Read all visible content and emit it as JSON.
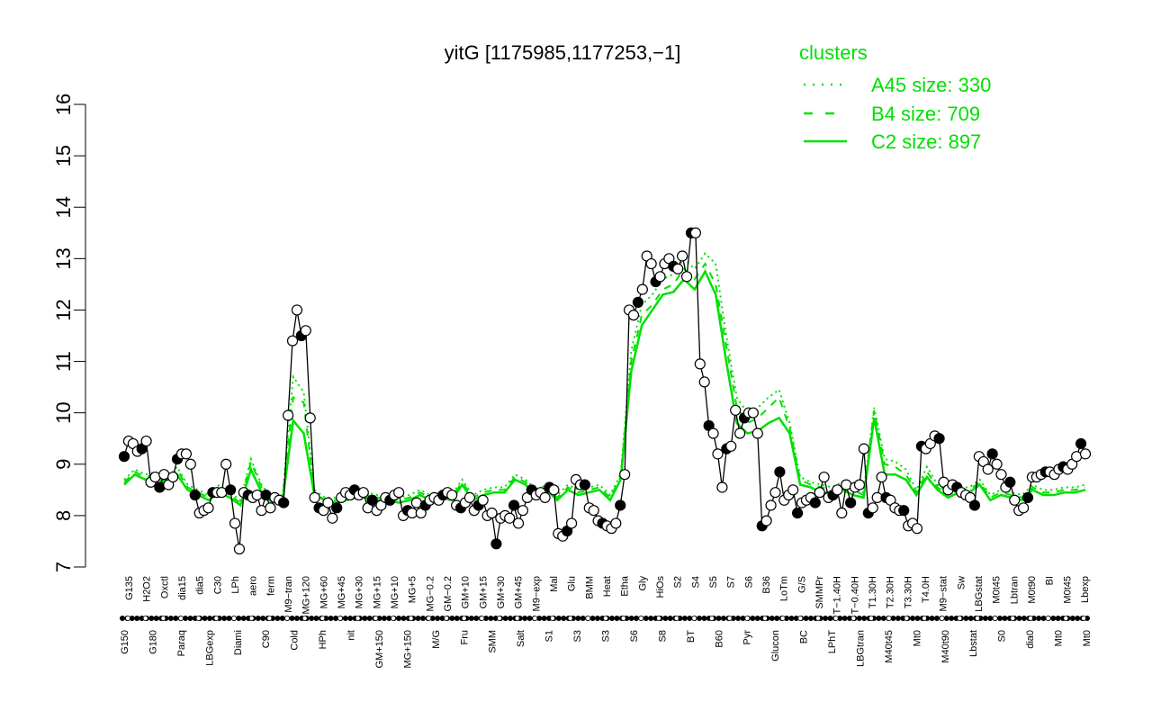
{
  "chart_data": {
    "type": "line",
    "title": "yitG [1175985,1177253,−1]",
    "xlabel": "",
    "ylabel": "",
    "ylim": [
      7,
      16
    ],
    "yticks": [
      7,
      8,
      9,
      10,
      11,
      12,
      13,
      14,
      15,
      16
    ],
    "grid": false,
    "legend": {
      "title": "clusters",
      "placement": "top-right",
      "color": "#00e000",
      "entries": [
        {
          "label": "A45 size: 330",
          "style": "dotted"
        },
        {
          "label": "B4 size: 709",
          "style": "dashed"
        },
        {
          "label": "C2 size: 897",
          "style": "solid"
        }
      ]
    },
    "tick_labels_top": [
      "G135",
      "H2O2",
      "Oxctl",
      "dia15",
      "dia5",
      "C30",
      "LPh",
      "aero",
      "ferm",
      "M9−tran",
      "MG+120",
      "MG+60",
      "MG+45",
      "MG+30",
      "MG+15",
      "MG+10",
      "MG+5",
      "MG−0.2",
      "GM−0.2",
      "GM+10",
      "GM+15",
      "GM+30",
      "GM+45",
      "M9−exp",
      "Mal",
      "Glu",
      "BMM",
      "Heat",
      "Etha",
      "Gly",
      "HiOs",
      "S2",
      "S4",
      "S5",
      "S7",
      "S6",
      "B36",
      "LoTm",
      "G/S",
      "SMMPr",
      "T−1.40H",
      "T−0.40H",
      "T1.30H",
      "T2.30H",
      "T3.30H",
      "T4.0H",
      "M9−stat",
      "Sw",
      "LBGstat",
      "M0t45",
      "Lbtran",
      "M0t90",
      "BI",
      "M0t45",
      "Lbexp"
    ],
    "tick_labels_bottom": [
      "G150",
      "G180",
      "Paraq",
      "LBGexp",
      "Diami",
      "C90",
      "Cold",
      "HPh",
      "nit",
      "GM+150",
      "MG+150",
      "M/G",
      "Fru",
      "SMM",
      "Salt",
      "S1",
      "S3",
      "S3",
      "S6",
      "S8",
      "BT",
      "B60",
      "Pyr",
      "Glucon",
      "BC",
      "LPhT",
      "LBGtran",
      "M40t45",
      "Mt0",
      "M40t90",
      "Lbstat",
      "S0",
      "dia0",
      "Mt0",
      "Mt0"
    ],
    "series_values": [
      9.15,
      9.45,
      9.4,
      9.25,
      9.3,
      9.45,
      8.65,
      8.75,
      8.55,
      8.8,
      8.6,
      8.75,
      9.1,
      9.2,
      9.2,
      9.0,
      8.4,
      8.05,
      8.1,
      8.15,
      8.45,
      8.45,
      8.45,
      9.0,
      8.5,
      7.85,
      7.35,
      8.45,
      8.4,
      8.35,
      8.4,
      8.1,
      8.4,
      8.15,
      8.35,
      8.3,
      8.25,
      9.95,
      11.4,
      12.0,
      11.5,
      11.6,
      9.9,
      8.35,
      8.15,
      8.1,
      8.25,
      7.95,
      8.15,
      8.35,
      8.45,
      8.4,
      8.5,
      8.4,
      8.45,
      8.15,
      8.3,
      8.1,
      8.2,
      8.35,
      8.3,
      8.4,
      8.45,
      8.0,
      8.1,
      8.05,
      8.25,
      8.05,
      8.2,
      8.3,
      8.35,
      8.3,
      8.4,
      8.45,
      8.4,
      8.2,
      8.15,
      8.25,
      8.35,
      8.1,
      8.2,
      8.3,
      8.0,
      8.05,
      7.45,
      7.95,
      8.0,
      7.95,
      8.2,
      7.85,
      8.1,
      8.35,
      8.5,
      8.4,
      8.45,
      8.35,
      8.55,
      8.5,
      7.65,
      7.6,
      7.7,
      7.85,
      8.7,
      8.6,
      8.6,
      8.15,
      8.1,
      7.9,
      7.85,
      7.8,
      7.75,
      7.85,
      8.2,
      8.8,
      12.0,
      11.9,
      12.15,
      12.4,
      13.05,
      12.9,
      12.55,
      12.65,
      12.9,
      13.0,
      12.85,
      12.8,
      13.05,
      12.65,
      13.5,
      13.5,
      10.95,
      10.6,
      9.75,
      9.6,
      9.2,
      8.55,
      9.3,
      9.35,
      10.05,
      9.6,
      9.9,
      10.0,
      10.0,
      9.6,
      7.8,
      7.9,
      8.2,
      8.45,
      8.85,
      8.3,
      8.4,
      8.5,
      8.05,
      8.25,
      8.3,
      8.35,
      8.25,
      8.45,
      8.75,
      8.35,
      8.4,
      8.5,
      8.05,
      8.6,
      8.25,
      8.55,
      8.6,
      9.3,
      8.05,
      8.15,
      8.35,
      8.75,
      8.35,
      8.3,
      8.15,
      8.1,
      8.1,
      7.8,
      7.85,
      7.75,
      9.35,
      9.3,
      9.4,
      9.55,
      9.5,
      8.65,
      8.5,
      8.6,
      8.55,
      8.45,
      8.4,
      8.35,
      8.2,
      9.15,
      9.05,
      8.9,
      9.2,
      9.0,
      8.8,
      8.55,
      8.65,
      8.3,
      8.1,
      8.15,
      8.35,
      8.75,
      8.75,
      8.8,
      8.85,
      8.85,
      8.8,
      8.9,
      8.95,
      8.9,
      9.0,
      9.15,
      9.4,
      9.2
    ],
    "cluster_series": [
      {
        "style": "solid",
        "values": [
          8.6,
          8.8,
          8.7,
          8.75,
          8.6,
          8.8,
          8.5,
          8.4,
          8.3,
          8.45,
          8.35,
          8.2,
          8.9,
          8.45,
          8.25,
          8.3,
          9.85,
          9.6,
          8.4,
          8.3,
          8.25,
          8.3,
          8.35,
          8.35,
          8.3,
          8.3,
          8.25,
          8.3,
          8.4,
          8.3,
          8.35,
          8.3,
          8.6,
          8.3,
          8.4,
          8.45,
          8.45,
          8.7,
          8.6,
          8.4,
          8.5,
          8.3,
          8.5,
          8.4,
          8.45,
          8.5,
          8.3,
          8.7,
          10.8,
          11.7,
          12.0,
          12.3,
          12.35,
          12.6,
          12.4,
          12.75,
          12.3,
          11.0,
          9.8,
          9.6,
          9.65,
          9.8,
          9.9,
          9.6,
          8.6,
          8.55,
          8.45,
          8.45,
          8.5,
          8.4,
          8.35,
          9.9,
          8.8,
          8.8,
          8.7,
          8.4,
          8.75,
          8.5,
          8.35,
          8.45,
          8.45,
          8.6,
          8.3,
          8.4,
          8.35,
          8.3,
          8.5,
          8.4,
          8.4,
          8.45,
          8.45,
          8.5
        ]
      },
      {
        "style": "dashed",
        "values": [
          8.65,
          8.85,
          8.75,
          8.8,
          8.65,
          8.9,
          8.55,
          8.45,
          8.35,
          8.55,
          8.4,
          8.25,
          9.05,
          8.55,
          8.3,
          8.35,
          10.3,
          10.2,
          8.45,
          8.3,
          8.3,
          8.35,
          8.4,
          8.4,
          8.35,
          8.35,
          8.3,
          8.35,
          8.45,
          8.35,
          8.4,
          8.35,
          8.65,
          8.35,
          8.45,
          8.5,
          8.5,
          8.75,
          8.65,
          8.45,
          8.55,
          8.35,
          8.55,
          8.45,
          8.5,
          8.55,
          8.35,
          8.75,
          11.0,
          11.9,
          12.1,
          12.4,
          12.5,
          12.8,
          12.6,
          12.9,
          12.5,
          11.3,
          10.1,
          9.8,
          9.9,
          10.1,
          10.3,
          9.7,
          8.7,
          8.6,
          8.55,
          8.5,
          8.6,
          8.5,
          8.4,
          10.05,
          9.0,
          8.95,
          8.8,
          8.45,
          8.85,
          8.55,
          8.4,
          8.5,
          8.5,
          8.65,
          8.35,
          8.45,
          8.4,
          8.35,
          8.55,
          8.45,
          8.45,
          8.5,
          8.5,
          8.55
        ]
      },
      {
        "style": "dotted",
        "values": [
          8.7,
          8.9,
          8.8,
          8.85,
          8.7,
          8.95,
          8.6,
          8.5,
          8.4,
          8.6,
          8.45,
          8.3,
          9.1,
          8.6,
          8.35,
          8.4,
          10.7,
          10.4,
          8.5,
          8.35,
          8.35,
          8.4,
          8.45,
          8.45,
          8.4,
          8.4,
          8.35,
          8.4,
          8.5,
          8.4,
          8.45,
          8.4,
          8.7,
          8.4,
          8.5,
          8.55,
          8.55,
          8.8,
          8.7,
          8.5,
          8.6,
          8.4,
          8.6,
          8.5,
          8.55,
          8.6,
          8.4,
          8.8,
          11.2,
          12.1,
          12.3,
          12.6,
          12.7,
          13.0,
          12.8,
          13.1,
          12.9,
          11.5,
          10.3,
          10.0,
          10.1,
          10.3,
          10.45,
          9.8,
          8.75,
          8.65,
          8.6,
          8.55,
          8.65,
          8.55,
          8.45,
          10.1,
          9.1,
          9.05,
          8.9,
          8.5,
          8.95,
          8.6,
          8.45,
          8.55,
          8.55,
          8.7,
          8.4,
          8.5,
          8.45,
          8.4,
          8.6,
          8.5,
          8.5,
          8.55,
          8.55,
          8.6
        ]
      }
    ]
  }
}
